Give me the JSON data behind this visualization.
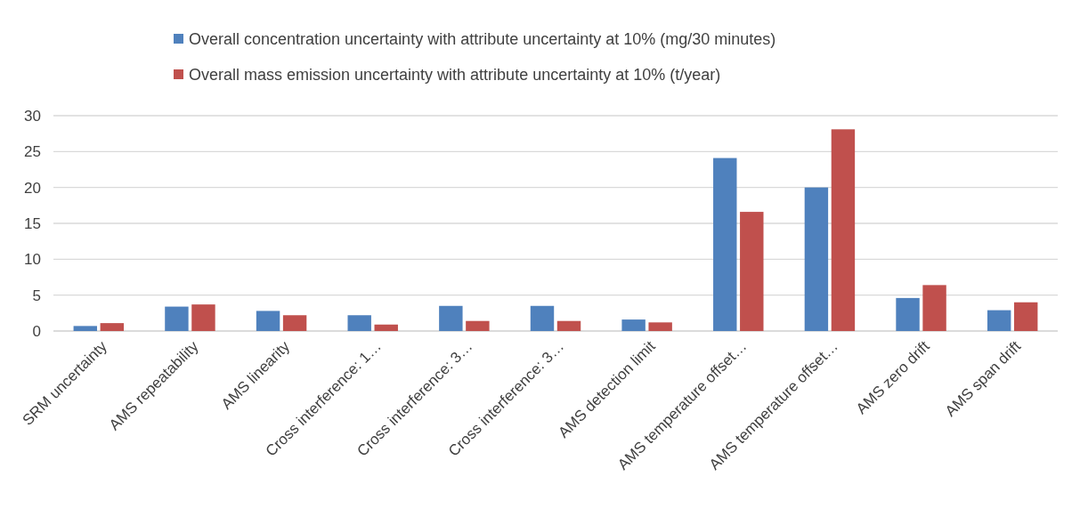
{
  "chart_data": {
    "type": "bar",
    "categories": [
      "SRM uncertainty",
      "AMS repeatability",
      "AMS linearity",
      "Cross interference: 1…",
      "Cross interference: 3…",
      "Cross interference: 3…",
      "AMS detection limit",
      "AMS temperature offset…",
      "AMS temperature offset…",
      "AMS zero drift",
      "AMS span drift"
    ],
    "series": [
      {
        "name": "Overall concentration uncertainty with attribute uncertainty at 10% (mg/30 minutes)",
        "color": "#4f81bd",
        "values": [
          0.7,
          3.4,
          2.8,
          2.2,
          3.5,
          3.5,
          1.6,
          24.1,
          20.0,
          4.6,
          2.9
        ]
      },
      {
        "name": "Overall mass emission uncertainty with attribute uncertainty at 10% (t/year)",
        "color": "#c0504d",
        "values": [
          1.1,
          3.7,
          2.2,
          0.9,
          1.4,
          1.4,
          1.2,
          16.6,
          28.1,
          6.4,
          4.0
        ]
      }
    ],
    "ylim": [
      0,
      30
    ],
    "yticks": [
      0,
      5,
      10,
      15,
      20,
      25,
      30
    ],
    "grid": "y",
    "legend": "top"
  }
}
